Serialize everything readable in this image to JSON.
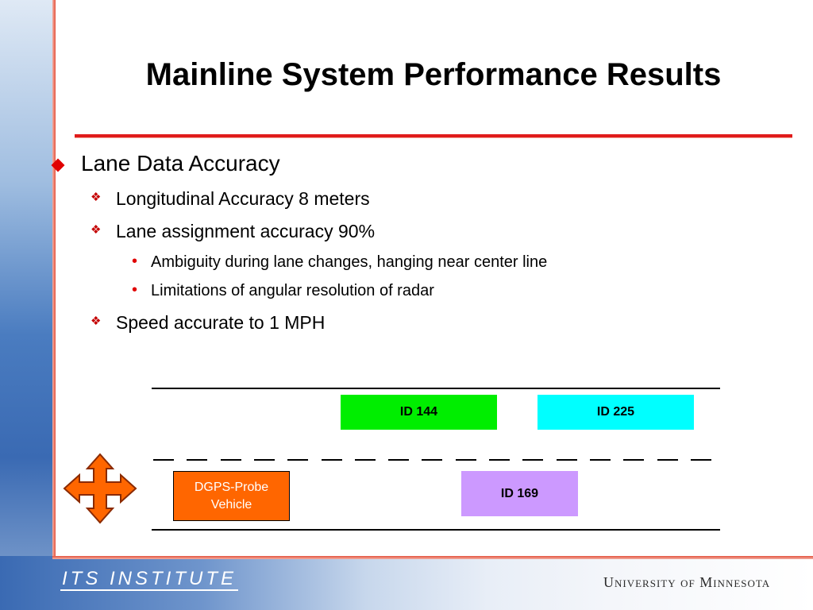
{
  "slide": {
    "title": "Mainline System Performance Results",
    "bullets": {
      "level1": "Lane Data Accuracy",
      "longitudinal": "Longitudinal Accuracy 8 meters",
      "lane_assignment": "Lane assignment accuracy 90%",
      "sub1": "Ambiguity during lane changes, hanging near center line",
      "sub2": "Limitations of angular resolution of radar",
      "speed": "Speed accurate to 1 MPH"
    }
  },
  "diagram": {
    "vehicles": {
      "id144": "ID 144",
      "id225": "ID 225",
      "id169": "ID 169",
      "probe": "DGPS-Probe Vehicle"
    },
    "colors": {
      "id144": "#00ee00",
      "id225": "#00ffff",
      "id169": "#cc99ff",
      "probe": "#ff6600",
      "arrow": "#ff6600"
    },
    "icons": {
      "move": "four-way-arrow-icon"
    }
  },
  "footer": {
    "left_logo": "ITS INSTITUTE",
    "right_logo": "University of Minnesota"
  }
}
